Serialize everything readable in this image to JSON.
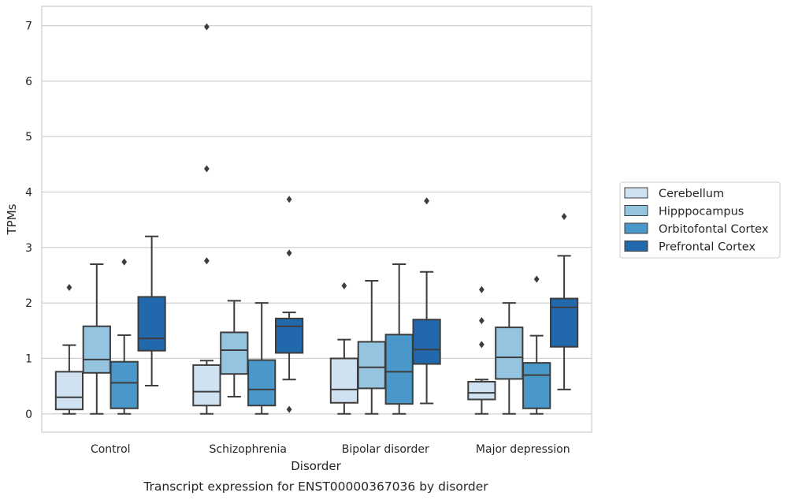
{
  "chart_data": {
    "type": "boxplot",
    "xlabel": "Disorder",
    "ylabel": "TPMs",
    "caption": "Transcript expression for ENST00000367036 by disorder",
    "ylim": [
      -0.33,
      7.35
    ],
    "yticks": [
      0,
      1,
      2,
      3,
      4,
      5,
      6,
      7
    ],
    "grid": "horizontal",
    "legend_position": "right",
    "categories": [
      "Control",
      "Schizophrenia",
      "Bipolar disorder",
      "Major depression"
    ],
    "series": [
      {
        "name": "Cerebellum",
        "color": "#d0e1f2",
        "boxes": [
          {
            "whislo": 0.0,
            "q1": 0.08,
            "med": 0.3,
            "q3": 0.76,
            "whishi": 1.24,
            "fliers": [
              2.28
            ]
          },
          {
            "whislo": 0.0,
            "q1": 0.15,
            "med": 0.4,
            "q3": 0.88,
            "whishi": 0.96,
            "fliers": [
              2.76,
              4.42,
              6.98
            ]
          },
          {
            "whislo": 0.0,
            "q1": 0.2,
            "med": 0.44,
            "q3": 1.0,
            "whishi": 1.34,
            "fliers": [
              2.31
            ]
          },
          {
            "whislo": 0.0,
            "q1": 0.26,
            "med": 0.38,
            "q3": 0.58,
            "whishi": 0.62,
            "fliers": [
              1.25,
              1.68,
              2.24
            ]
          }
        ]
      },
      {
        "name": "Hipppocampus",
        "color": "#94c4df",
        "boxes": [
          {
            "whislo": 0.0,
            "q1": 0.74,
            "med": 0.98,
            "q3": 1.58,
            "whishi": 2.7,
            "fliers": []
          },
          {
            "whislo": 0.31,
            "q1": 0.72,
            "med": 1.15,
            "q3": 1.47,
            "whishi": 2.04,
            "fliers": []
          },
          {
            "whislo": 0.0,
            "q1": 0.46,
            "med": 0.84,
            "q3": 1.3,
            "whishi": 2.4,
            "fliers": []
          },
          {
            "whislo": 0.0,
            "q1": 0.63,
            "med": 1.02,
            "q3": 1.56,
            "whishi": 2.0,
            "fliers": []
          }
        ]
      },
      {
        "name": "Orbitofontal Cortex",
        "color": "#4a98c9",
        "boxes": [
          {
            "whislo": 0.0,
            "q1": 0.1,
            "med": 0.56,
            "q3": 0.94,
            "whishi": 1.42,
            "fliers": [
              2.74
            ]
          },
          {
            "whislo": 0.0,
            "q1": 0.15,
            "med": 0.44,
            "q3": 0.97,
            "whishi": 2.0,
            "fliers": []
          },
          {
            "whislo": 0.0,
            "q1": 0.18,
            "med": 0.76,
            "q3": 1.43,
            "whishi": 2.7,
            "fliers": []
          },
          {
            "whislo": 0.0,
            "q1": 0.1,
            "med": 0.7,
            "q3": 0.92,
            "whishi": 1.41,
            "fliers": [
              2.43
            ]
          }
        ]
      },
      {
        "name": "Prefrontal Cortex",
        "color": "#2268ac",
        "boxes": [
          {
            "whislo": 0.51,
            "q1": 1.14,
            "med": 1.36,
            "q3": 2.11,
            "whishi": 3.2,
            "fliers": []
          },
          {
            "whislo": 0.62,
            "q1": 1.1,
            "med": 1.58,
            "q3": 1.72,
            "whishi": 1.83,
            "fliers": [
              0.08,
              2.9,
              3.87
            ]
          },
          {
            "whislo": 0.19,
            "q1": 0.9,
            "med": 1.16,
            "q3": 1.7,
            "whishi": 2.56,
            "fliers": [
              3.84
            ]
          },
          {
            "whislo": 0.44,
            "q1": 1.21,
            "med": 1.92,
            "q3": 2.08,
            "whishi": 2.85,
            "fliers": [
              3.56
            ]
          }
        ]
      }
    ]
  }
}
